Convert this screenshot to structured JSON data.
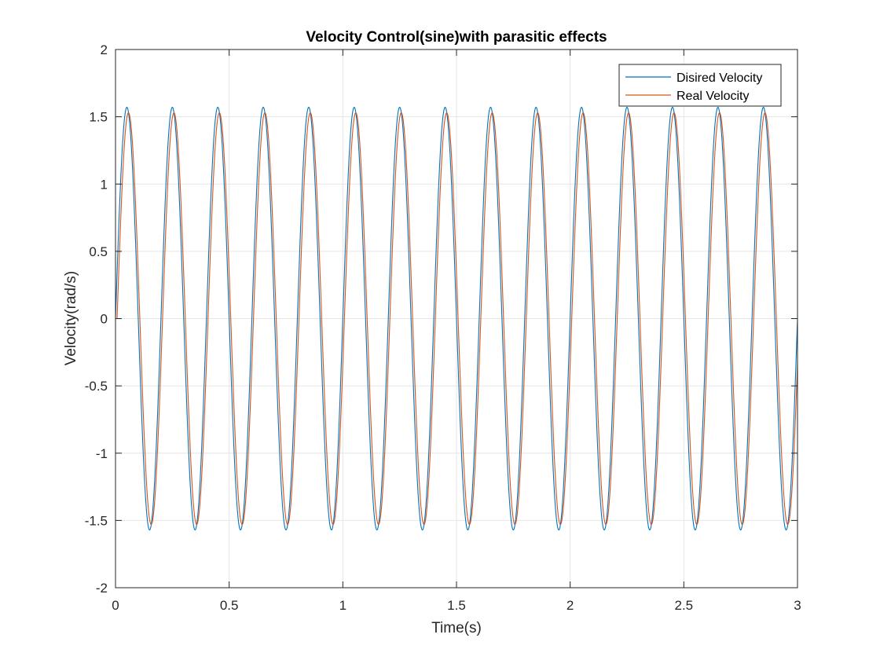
{
  "chart_data": {
    "type": "line",
    "title": "Velocity Control(sine)with parasitic effects",
    "xlabel": "Time(s)",
    "ylabel": "Velocity(rad/s)",
    "xlim": [
      0,
      3
    ],
    "ylim": [
      -2,
      2
    ],
    "xticks": [
      0,
      0.5,
      1,
      1.5,
      2,
      2.5,
      3
    ],
    "yticks": [
      -2,
      -1.5,
      -1,
      -0.5,
      0,
      0.5,
      1,
      1.5,
      2
    ],
    "xtick_labels": [
      "0",
      "0.5",
      "1",
      "1.5",
      "2",
      "2.5",
      "3"
    ],
    "ytick_labels": [
      "-2",
      "-1.5",
      "-1",
      "-0.5",
      "0",
      "0.5",
      "1",
      "1.5",
      "2"
    ],
    "grid": true,
    "legend_position": "top-right",
    "series": [
      {
        "name": "Disired Velocity",
        "color": "#0072BD",
        "amplitude": 1.5708,
        "frequency_hz": 5,
        "phase_delay_s": 0
      },
      {
        "name": "Real Velocity",
        "color": "#D95319",
        "amplitude": 1.53,
        "frequency_hz": 5,
        "phase_delay_s": 0.007
      }
    ]
  }
}
